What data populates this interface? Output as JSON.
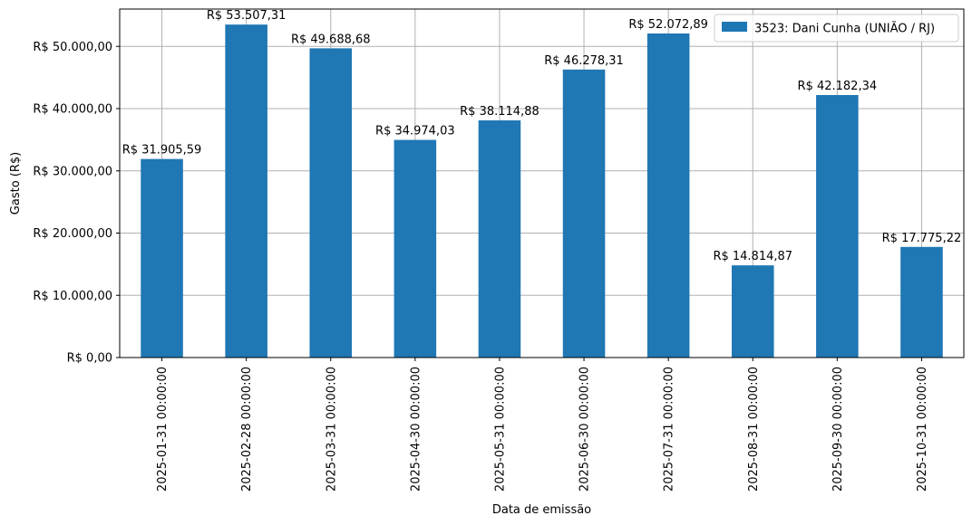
{
  "colors": {
    "bar": "#1f77b4",
    "grid": "#b0b0b0",
    "axis": "#000000",
    "background": "#ffffff"
  },
  "chart_data": {
    "type": "bar",
    "title": "",
    "xlabel": "Data de emissão",
    "ylabel": "Gasto (R$)",
    "grid": true,
    "legend_position": "top-right",
    "ylim": [
      0,
      56000
    ],
    "y_ticks": [
      0,
      10000,
      20000,
      30000,
      40000,
      50000
    ],
    "y_tick_labels": [
      "R$ 0,00",
      "R$ 10.000,00",
      "R$ 20.000,00",
      "R$ 30.000,00",
      "R$ 40.000,00",
      "R$ 50.000,00"
    ],
    "categories": [
      "2025-01-31 00:00:00",
      "2025-02-28 00:00:00",
      "2025-03-31 00:00:00",
      "2025-04-30 00:00:00",
      "2025-05-31 00:00:00",
      "2025-06-30 00:00:00",
      "2025-07-31 00:00:00",
      "2025-08-31 00:00:00",
      "2025-09-30 00:00:00",
      "2025-10-31 00:00:00"
    ],
    "series": [
      {
        "name": "3523: Dani Cunha (UNIÃO / RJ)",
        "values": [
          31905.59,
          53507.31,
          49688.68,
          34974.03,
          38114.88,
          46278.31,
          52072.89,
          14814.87,
          42182.34,
          17775.22
        ],
        "labels": [
          "R$ 31.905,59",
          "R$ 53.507,31",
          "R$ 49.688,68",
          "R$ 34.974,03",
          "R$ 38.114,88",
          "R$ 46.278,31",
          "R$ 52.072,89",
          "R$ 14.814,87",
          "R$ 42.182,34",
          "R$ 17.775,22"
        ]
      }
    ]
  }
}
